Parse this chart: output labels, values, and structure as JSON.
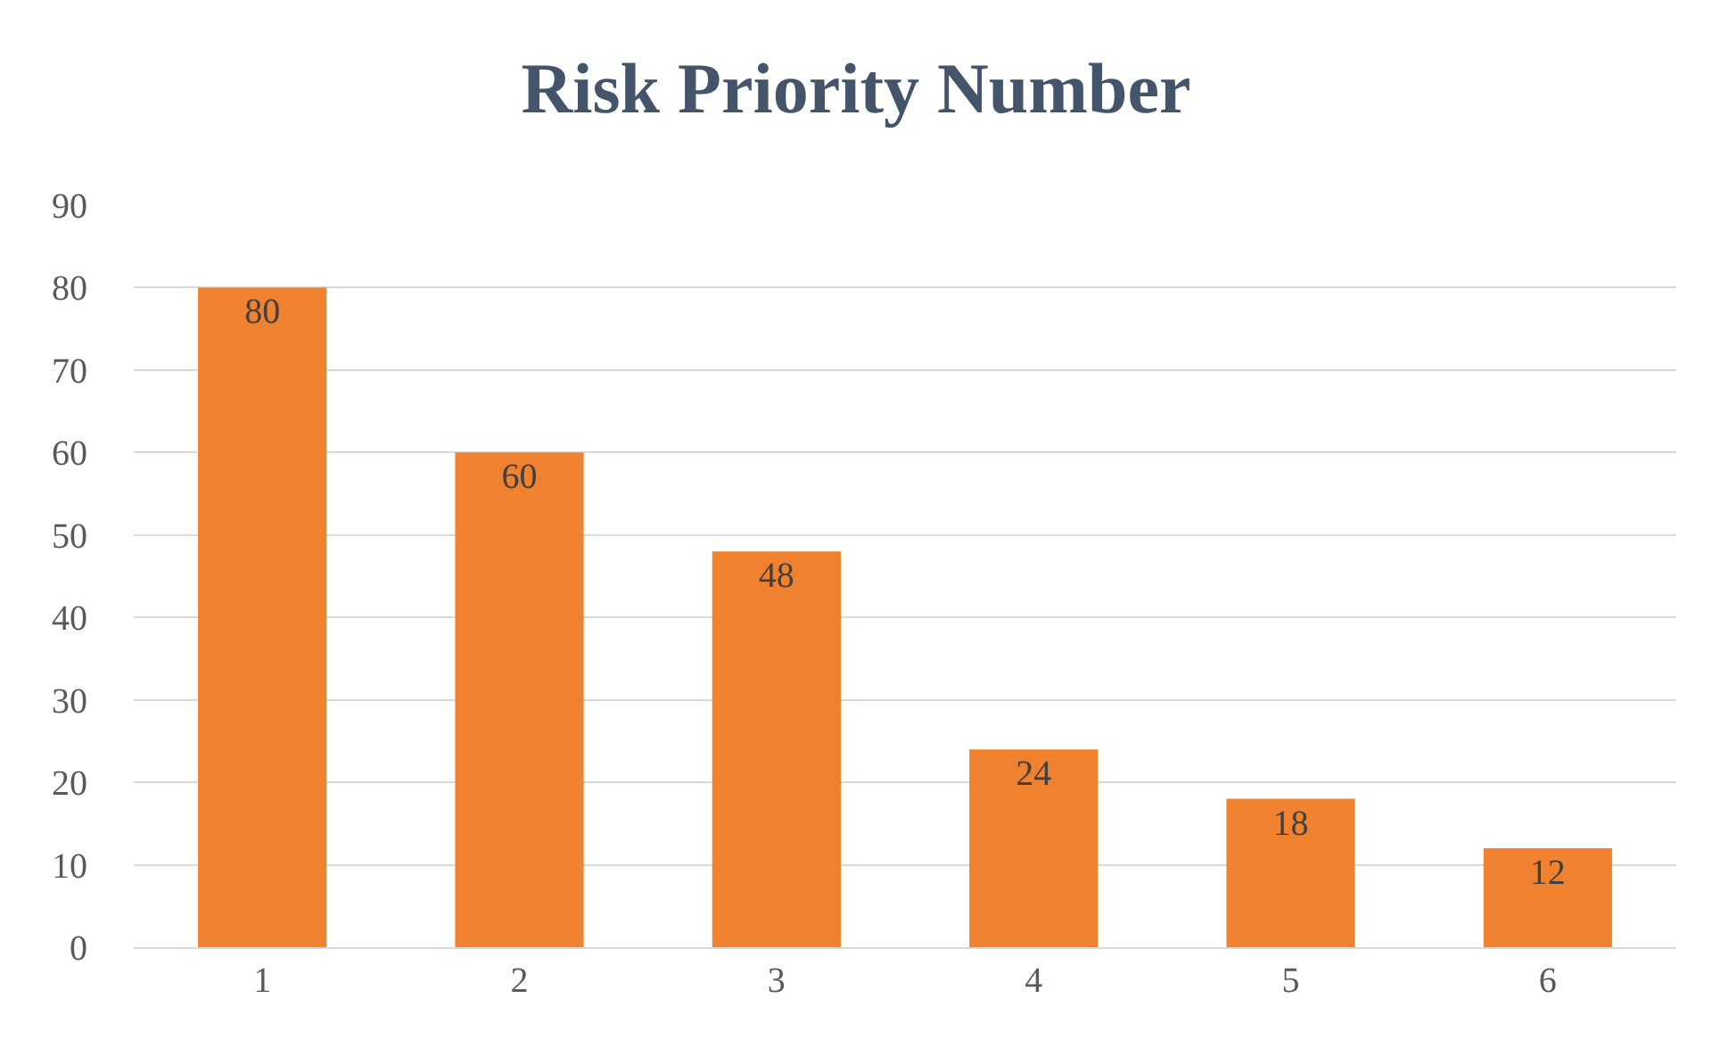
{
  "chart_data": {
    "type": "bar",
    "title": "Risk Priority Number",
    "categories": [
      "1",
      "2",
      "3",
      "4",
      "5",
      "6"
    ],
    "values": [
      80,
      60,
      48,
      24,
      18,
      12
    ],
    "color": "#f0812e",
    "ylim": [
      0,
      90
    ],
    "yticks": [
      0,
      10,
      20,
      30,
      40,
      50,
      60,
      70,
      80,
      90
    ],
    "grid": "y",
    "data_labels": true
  }
}
